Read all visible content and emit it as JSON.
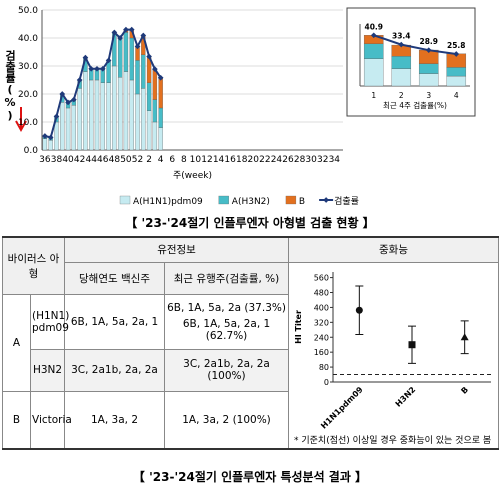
{
  "chart_data": [
    {
      "type": "bar",
      "stacked": true,
      "xlabel": "주(week)",
      "ylabel": "검출률(%)",
      "categories": [
        "36",
        null,
        "38",
        null,
        "40",
        null,
        "42",
        null,
        "44",
        null,
        "46",
        null,
        "48",
        null,
        "50",
        null,
        "52",
        null,
        "2",
        null,
        "4",
        null,
        "6",
        null,
        "8",
        null,
        "10",
        null,
        "12",
        null,
        "14",
        null,
        "16",
        null,
        "18",
        null,
        "20",
        null,
        "22",
        null,
        "24",
        null,
        "26",
        null,
        "28",
        null,
        "30",
        null,
        "32",
        null,
        "34",
        null
      ],
      "series": [
        {
          "name": "A(H1N1)pdm09",
          "color": "#c6ebf1",
          "values": [
            4,
            3.5,
            10,
            17,
            15,
            16,
            22,
            28,
            25,
            25,
            24,
            24,
            30,
            26,
            28,
            25,
            20,
            22,
            14,
            10,
            8,
            null,
            null,
            null,
            null,
            null,
            null,
            null,
            null,
            null,
            null,
            null,
            null,
            null,
            null,
            null,
            null,
            null,
            null,
            null,
            null,
            null,
            null,
            null,
            null,
            null,
            null,
            null,
            null,
            null,
            null,
            null
          ]
        },
        {
          "name": "A(H3N2)",
          "color": "#47bcc7",
          "values": [
            1,
            1,
            2,
            3,
            2,
            2,
            3,
            5,
            4,
            4,
            5,
            8,
            12,
            14,
            14,
            15,
            12,
            12,
            10,
            8,
            7,
            null,
            null,
            null,
            null,
            null,
            null,
            null,
            null,
            null,
            null,
            null,
            null,
            null,
            null,
            null,
            null,
            null,
            null,
            null,
            null,
            null,
            null,
            null,
            null,
            null,
            null,
            null,
            null,
            null,
            null,
            null
          ]
        },
        {
          "name": "B",
          "color": "#e2701f",
          "values": [
            0,
            0,
            0,
            0,
            0,
            0,
            0,
            0,
            0,
            0,
            0,
            0,
            0,
            0,
            1,
            3,
            5,
            7,
            9,
            11,
            11,
            null,
            null,
            null,
            null,
            null,
            null,
            null,
            null,
            null,
            null,
            null,
            null,
            null,
            null,
            null,
            null,
            null,
            null,
            null,
            null,
            null,
            null,
            null,
            null,
            null,
            null,
            null,
            null,
            null,
            null,
            null
          ]
        },
        {
          "name": "검출률",
          "type": "line",
          "color": "#1f3a7a",
          "values": [
            5,
            4.5,
            12,
            20,
            17,
            18,
            25,
            33,
            29,
            29,
            29,
            32,
            42,
            40,
            43,
            43,
            37,
            40.9,
            33.4,
            28.9,
            25.8,
            null,
            null,
            null,
            null,
            null,
            null,
            null,
            null,
            null,
            null,
            null,
            null,
            null,
            null,
            null,
            null,
            null,
            null,
            null,
            null,
            null,
            null,
            null,
            null,
            null,
            null,
            null,
            null,
            null,
            null,
            null
          ]
        }
      ],
      "ylim": [
        0,
        50
      ],
      "yticks": [
        {
          "value": 0,
          "label": "0.0"
        },
        {
          "value": 10,
          "label": "10.0"
        },
        {
          "value": 20,
          "label": "20.0"
        },
        {
          "value": 30,
          "label": "30.0"
        },
        {
          "value": 40,
          "label": "40.0"
        },
        {
          "value": 50,
          "label": "50.0"
        }
      ],
      "grid": true
    },
    {
      "type": "bar",
      "stacked": true,
      "show_line_labels": true,
      "xlabel": "최근 4주 검출률(%)",
      "categories": [
        "1",
        "2",
        "3",
        "4"
      ],
      "series": [
        {
          "color": "#c6ebf1",
          "values": [
            22,
            14,
            10,
            8
          ]
        },
        {
          "color": "#47bcc7",
          "values": [
            12,
            10,
            8,
            7
          ]
        },
        {
          "color": "#e2701f",
          "values": [
            7,
            9,
            11,
            11
          ]
        },
        {
          "type": "line",
          "color": "#1f3a7a",
          "values": [
            40.9,
            33.4,
            28.9,
            25.8
          ]
        }
      ],
      "ylim": [
        0,
        50
      ]
    },
    {
      "type": "errorbar",
      "ylabel": "HI Titer",
      "categories": [
        "H1N1pdm09",
        "H3N2",
        "B"
      ],
      "values": [
        385,
        200,
        240
      ],
      "errors": [
        130,
        100,
        88
      ],
      "markers": [
        "circle",
        "square",
        "triangle"
      ],
      "color": "#111",
      "reference_line": 40,
      "ylim": [
        0,
        590
      ],
      "yticks": [
        0,
        80,
        160,
        240,
        320,
        400,
        480,
        560
      ],
      "note": "* 기준치(점선) 이상일 경우 중화능이  있는 것으로 봄"
    }
  ],
  "captions": [
    "【 '23-'24절기 인플루엔자 아형별 검출 현황 】",
    "【 '23-'24절기 인플루엔자 특성분석 결과 】"
  ],
  "table": {
    "header": {
      "virus_type": "바이러스 아형",
      "genetic": "유전정보",
      "neutralization": "중화능",
      "vaccine": "당해연도 백신주",
      "recent": "최근 유행주(검출률, %)"
    },
    "rows": [
      {
        "group": "A",
        "subtype": "(H1N1) pdm09",
        "vaccine": "6B, 1A, 5a, 2a, 1",
        "recent": [
          "6B, 1A, 5a, 2a (37.3%)",
          "6B, 1A, 5a, 2a, 1 (62.7%)"
        ]
      },
      {
        "subtype": "H3N2",
        "vaccine": "3C, 2a1b, 2a, 2a",
        "recent": [
          "3C, 2a1b, 2a, 2a (100%)"
        ]
      },
      {
        "group": "B",
        "subtype": "Victoria",
        "vaccine": "1A, 3a, 2",
        "recent": [
          "1A, 3a, 2 (100%)"
        ]
      }
    ]
  }
}
